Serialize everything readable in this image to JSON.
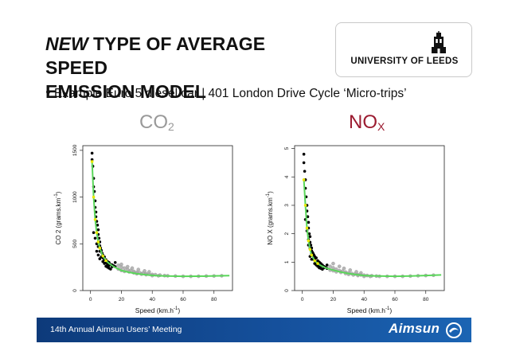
{
  "slide": {
    "title_em": "NEW",
    "title_rest": " TYPE OF AVERAGE SPEED",
    "title_line2": "EMISSION MODEL",
    "bullet": "Example Euro 5 diesel car | 401 London Drive Cycle ‘Micro-trips’"
  },
  "logo": {
    "text": "UNIVERSITY OF LEEDS"
  },
  "panels": {
    "co2": {
      "main": "CO",
      "sub": "2",
      "color": "#999999"
    },
    "nox": {
      "main": "NO",
      "sub": "X",
      "color": "#9b1b30"
    }
  },
  "footer": {
    "meeting": "14th Annual Aimsun Users’ Meeting",
    "brand": "Aimsun"
  },
  "colors": {
    "cluster_light": "#a9a9a9",
    "cluster_dark": "#000000",
    "fit_line": "#5ad65a",
    "low_speed_fit": "#e8e800"
  },
  "chart_data": [
    {
      "type": "scatter",
      "title": "",
      "xlabel": "Speed (km.h^-1)",
      "ylabel": "CO 2 (grams.km^-1)",
      "xlim": [
        -5,
        92
      ],
      "ylim": [
        0,
        1550
      ],
      "xticks": [
        0,
        20,
        40,
        60,
        80
      ],
      "yticks": [
        0,
        500,
        1000,
        1500
      ],
      "grid": false,
      "fit_curve": {
        "x": [
          1,
          2,
          3,
          4,
          5,
          6,
          8,
          10,
          12,
          15,
          20,
          25,
          30,
          35,
          40,
          45,
          50,
          60,
          70,
          80,
          90
        ],
        "y": [
          1380,
          1000,
          760,
          620,
          520,
          455,
          370,
          320,
          290,
          255,
          215,
          195,
          180,
          170,
          162,
          158,
          155,
          152,
          153,
          156,
          160
        ]
      },
      "points": [
        [
          1,
          1470
        ],
        [
          1,
          1400
        ],
        [
          1.5,
          1330
        ],
        [
          2,
          1200
        ],
        [
          2,
          1110
        ],
        [
          2.5,
          1060
        ],
        [
          3,
          960
        ],
        [
          3,
          890
        ],
        [
          3.5,
          840
        ],
        [
          3.5,
          790
        ],
        [
          4,
          740
        ],
        [
          4.5,
          700
        ],
        [
          5,
          650
        ],
        [
          5,
          600
        ],
        [
          5.5,
          560
        ],
        [
          6,
          520
        ],
        [
          6,
          480
        ],
        [
          6.5,
          455
        ],
        [
          7,
          430
        ],
        [
          7.5,
          400
        ],
        [
          8,
          380
        ],
        [
          8,
          350
        ],
        [
          9,
          360
        ],
        [
          9,
          330
        ],
        [
          10,
          330
        ],
        [
          10,
          300
        ],
        [
          11,
          310
        ],
        [
          11,
          280
        ],
        [
          12,
          300
        ],
        [
          12,
          270
        ],
        [
          13,
          280
        ],
        [
          14,
          275
        ],
        [
          14,
          255
        ],
        [
          15,
          265
        ],
        [
          16,
          255
        ],
        [
          4,
          500
        ],
        [
          5,
          470
        ],
        [
          6,
          420
        ],
        [
          7,
          360
        ],
        [
          8,
          310
        ],
        [
          9,
          290
        ],
        [
          10,
          260
        ],
        [
          11,
          250
        ],
        [
          12,
          240
        ],
        [
          13,
          230
        ],
        [
          2,
          620
        ],
        [
          3,
          560
        ],
        [
          4,
          420
        ],
        [
          5,
          380
        ],
        [
          6,
          340
        ],
        [
          16,
          300
        ],
        [
          18,
          270
        ],
        [
          20,
          250
        ],
        [
          22,
          240
        ],
        [
          24,
          225
        ],
        [
          26,
          215
        ],
        [
          28,
          205
        ],
        [
          30,
          195
        ],
        [
          32,
          190
        ],
        [
          34,
          185
        ],
        [
          36,
          180
        ],
        [
          38,
          175
        ],
        [
          40,
          172
        ],
        [
          42,
          170
        ],
        [
          45,
          165
        ],
        [
          48,
          160
        ],
        [
          50,
          158
        ],
        [
          55,
          155
        ],
        [
          60,
          152
        ],
        [
          65,
          152
        ],
        [
          70,
          153
        ],
        [
          75,
          155
        ],
        [
          80,
          156
        ],
        [
          85,
          158
        ],
        [
          18,
          230
        ],
        [
          20,
          215
        ],
        [
          22,
          205
        ],
        [
          25,
          200
        ],
        [
          28,
          190
        ],
        [
          30,
          180
        ],
        [
          33,
          175
        ],
        [
          36,
          170
        ],
        [
          40,
          160
        ],
        [
          44,
          158
        ],
        [
          20,
          280
        ],
        [
          24,
          255
        ],
        [
          27,
          240
        ],
        [
          31,
          225
        ],
        [
          35,
          210
        ],
        [
          38,
          200
        ]
      ]
    },
    {
      "type": "scatter",
      "title": "",
      "xlabel": "Speed (km.h^-1)",
      "ylabel": "NO X (grams.km^-1)",
      "xlim": [
        -5,
        92
      ],
      "ylim": [
        0,
        5.1
      ],
      "xticks": [
        0,
        20,
        40,
        60,
        80
      ],
      "yticks": [
        0,
        1,
        2,
        3,
        4,
        5
      ],
      "grid": false,
      "fit_curve": {
        "x": [
          1,
          2,
          3,
          4,
          5,
          6,
          8,
          10,
          12,
          15,
          20,
          25,
          30,
          35,
          40,
          45,
          50,
          60,
          70,
          80,
          90
        ],
        "y": [
          3.9,
          3.0,
          2.2,
          1.75,
          1.45,
          1.25,
          1.05,
          0.95,
          0.88,
          0.8,
          0.72,
          0.65,
          0.6,
          0.56,
          0.53,
          0.52,
          0.51,
          0.5,
          0.51,
          0.53,
          0.55
        ]
      },
      "points": [
        [
          1,
          4.8
        ],
        [
          1,
          4.5
        ],
        [
          1.5,
          4.2
        ],
        [
          2,
          3.9
        ],
        [
          2,
          3.6
        ],
        [
          2.5,
          3.3
        ],
        [
          3,
          3.0
        ],
        [
          3,
          2.8
        ],
        [
          3.5,
          2.6
        ],
        [
          4,
          2.4
        ],
        [
          4,
          2.2
        ],
        [
          4.5,
          2.0
        ],
        [
          5,
          1.9
        ],
        [
          5,
          1.7
        ],
        [
          5.5,
          1.6
        ],
        [
          6,
          1.5
        ],
        [
          6,
          1.4
        ],
        [
          6.5,
          1.35
        ],
        [
          7,
          1.3
        ],
        [
          7.5,
          1.25
        ],
        [
          8,
          1.2
        ],
        [
          8,
          1.1
        ],
        [
          9,
          1.15
        ],
        [
          9,
          1.0
        ],
        [
          10,
          1.05
        ],
        [
          10,
          0.95
        ],
        [
          11,
          1.0
        ],
        [
          11,
          0.9
        ],
        [
          12,
          0.95
        ],
        [
          12,
          0.85
        ],
        [
          13,
          0.9
        ],
        [
          14,
          0.85
        ],
        [
          14,
          0.8
        ],
        [
          15,
          0.82
        ],
        [
          16,
          0.78
        ],
        [
          4,
          1.8
        ],
        [
          5,
          1.5
        ],
        [
          6,
          1.3
        ],
        [
          7,
          1.1
        ],
        [
          8,
          0.95
        ],
        [
          9,
          0.9
        ],
        [
          10,
          0.85
        ],
        [
          11,
          0.8
        ],
        [
          12,
          0.78
        ],
        [
          13,
          0.75
        ],
        [
          2,
          2.5
        ],
        [
          3,
          2.1
        ],
        [
          4,
          1.6
        ],
        [
          5,
          1.2
        ],
        [
          6,
          1.1
        ],
        [
          16,
          0.9
        ],
        [
          18,
          0.85
        ],
        [
          20,
          0.8
        ],
        [
          22,
          0.75
        ],
        [
          24,
          0.7
        ],
        [
          26,
          0.68
        ],
        [
          28,
          0.65
        ],
        [
          30,
          0.62
        ],
        [
          32,
          0.6
        ],
        [
          34,
          0.58
        ],
        [
          36,
          0.56
        ],
        [
          38,
          0.55
        ],
        [
          40,
          0.54
        ],
        [
          42,
          0.53
        ],
        [
          45,
          0.52
        ],
        [
          48,
          0.51
        ],
        [
          50,
          0.5
        ],
        [
          55,
          0.5
        ],
        [
          60,
          0.5
        ],
        [
          65,
          0.5
        ],
        [
          70,
          0.51
        ],
        [
          75,
          0.52
        ],
        [
          80,
          0.53
        ],
        [
          85,
          0.54
        ],
        [
          18,
          0.72
        ],
        [
          20,
          0.7
        ],
        [
          22,
          0.66
        ],
        [
          25,
          0.64
        ],
        [
          28,
          0.6
        ],
        [
          30,
          0.57
        ],
        [
          33,
          0.55
        ],
        [
          36,
          0.53
        ],
        [
          40,
          0.5
        ],
        [
          44,
          0.5
        ],
        [
          20,
          0.95
        ],
        [
          24,
          0.85
        ],
        [
          27,
          0.78
        ],
        [
          31,
          0.72
        ],
        [
          35,
          0.66
        ],
        [
          38,
          0.62
        ]
      ]
    }
  ]
}
